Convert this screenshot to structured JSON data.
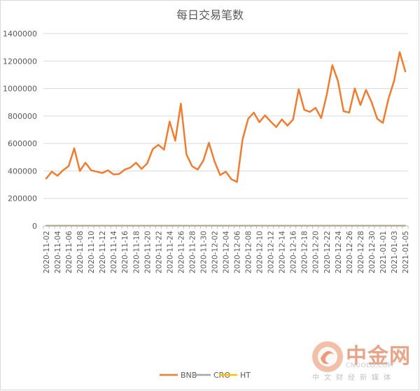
{
  "chart_data": {
    "type": "line",
    "title": "每日交易笔数",
    "xlabel": "",
    "ylabel": "",
    "ylim": [
      0,
      1400000
    ],
    "yticks": [
      0,
      200000,
      400000,
      600000,
      800000,
      1000000,
      1200000,
      1400000
    ],
    "ytick_labels": [
      "0",
      "200000",
      "400000",
      "600000",
      "800000",
      "1000000",
      "1200000",
      "1400000"
    ],
    "grid": true,
    "legend": "bottom",
    "x": [
      "2020-11-02",
      "2020-11-03",
      "2020-11-04",
      "2020-11-05",
      "2020-11-06",
      "2020-11-07",
      "2020-11-08",
      "2020-11-09",
      "2020-11-10",
      "2020-11-11",
      "2020-11-12",
      "2020-11-13",
      "2020-11-14",
      "2020-11-15",
      "2020-11-16",
      "2020-11-17",
      "2020-11-18",
      "2020-11-19",
      "2020-11-20",
      "2020-11-21",
      "2020-11-22",
      "2020-11-23",
      "2020-11-24",
      "2020-11-25",
      "2020-11-26",
      "2020-11-27",
      "2020-11-28",
      "2020-11-29",
      "2020-11-30",
      "2020-12-01",
      "2020-12-02",
      "2020-12-03",
      "2020-12-04",
      "2020-12-05",
      "2020-12-06",
      "2020-12-07",
      "2020-12-08",
      "2020-12-09",
      "2020-12-10",
      "2020-12-11",
      "2020-12-12",
      "2020-12-13",
      "2020-12-14",
      "2020-12-15",
      "2020-12-16",
      "2020-12-17",
      "2020-12-18",
      "2020-12-19",
      "2020-12-20",
      "2020-12-21",
      "2020-12-22",
      "2020-12-23",
      "2020-12-24",
      "2020-12-25",
      "2020-12-26",
      "2020-12-27",
      "2020-12-28",
      "2020-12-29",
      "2020-12-30",
      "2020-12-31",
      "2021-01-01",
      "2021-01-02",
      "2021-01-03",
      "2021-01-04",
      "2021-01-05"
    ],
    "xtick_labels": [
      "2020-11-02",
      "2020-11-04",
      "2020-11-06",
      "2020-11-08",
      "2020-11-10",
      "2020-11-12",
      "2020-11-14",
      "2020-11-16",
      "2020-11-18",
      "2020-11-20",
      "2020-11-22",
      "2020-11-24",
      "2020-11-26",
      "2020-11-28",
      "2020-11-30",
      "2020-12-02",
      "2020-12-04",
      "2020-12-06",
      "2020-12-08",
      "2020-12-10",
      "2020-12-12",
      "2020-12-14",
      "2020-12-16",
      "2020-12-18",
      "2020-12-20",
      "2020-12-22",
      "2020-12-24",
      "2020-12-26",
      "2020-12-28",
      "2020-12-30",
      "2021-01-01",
      "2021-01-03",
      "2021-01-05"
    ],
    "series": [
      {
        "name": "BNB",
        "color": "#ed7d31",
        "values": [
          345000,
          395000,
          365000,
          405000,
          435000,
          565000,
          400000,
          460000,
          405000,
          395000,
          385000,
          405000,
          375000,
          378000,
          410000,
          425000,
          460000,
          415000,
          455000,
          560000,
          590000,
          555000,
          760000,
          620000,
          890000,
          520000,
          435000,
          410000,
          475000,
          605000,
          470000,
          370000,
          395000,
          340000,
          320000,
          630000,
          780000,
          825000,
          755000,
          805000,
          760000,
          720000,
          775000,
          730000,
          775000,
          995000,
          845000,
          830000,
          860000,
          785000,
          955000,
          1170000,
          1055000,
          835000,
          825000,
          1000000,
          880000,
          990000,
          900000,
          780000,
          750000,
          925000,
          1055000,
          1265000,
          1125000
        ]
      },
      {
        "name": "CRO",
        "color": "#a5a5a5",
        "values": [
          1500,
          1500,
          1500,
          1500,
          1500,
          1500,
          1500,
          1500,
          1500,
          1500,
          1500,
          1500,
          1500,
          1500,
          1500,
          1500,
          1500,
          1500,
          1500,
          1500,
          1500,
          1500,
          1500,
          1500,
          1500,
          1500,
          1500,
          1500,
          1500,
          1500,
          1500,
          1500,
          1500,
          1500,
          1500,
          1500,
          1500,
          1500,
          1500,
          1500,
          1500,
          1500,
          1500,
          1500,
          1500,
          1500,
          1500,
          1500,
          1500,
          1500,
          1500,
          1500,
          1500,
          1500,
          1500,
          1500,
          1500,
          1500,
          1500,
          1500,
          1500,
          1500,
          1500,
          1500,
          1500
        ]
      },
      {
        "name": "HT",
        "color": "#ffc000",
        "values": [
          2500,
          2500,
          2500,
          2500,
          2500,
          2500,
          2500,
          2500,
          2500,
          2500,
          2500,
          2500,
          2500,
          2500,
          2500,
          2500,
          2500,
          2500,
          2500,
          2500,
          2500,
          2500,
          2500,
          2500,
          2500,
          2500,
          2500,
          2500,
          2500,
          2500,
          2500,
          2500,
          2500,
          2500,
          2500,
          2500,
          2500,
          2500,
          2500,
          2500,
          2500,
          2500,
          2500,
          2500,
          2500,
          2500,
          2500,
          2500,
          2500,
          2500,
          2500,
          2500,
          2500,
          2500,
          2500,
          2500,
          2500,
          2500,
          2500,
          2500,
          2500,
          2500,
          2500,
          2500,
          2500
        ]
      }
    ]
  },
  "watermark": {
    "logo_icon": "zhongjin-logo-icon",
    "brand": "中金网",
    "url": "CNGOLD.COM",
    "subtitle": "中文财经新媒体"
  }
}
